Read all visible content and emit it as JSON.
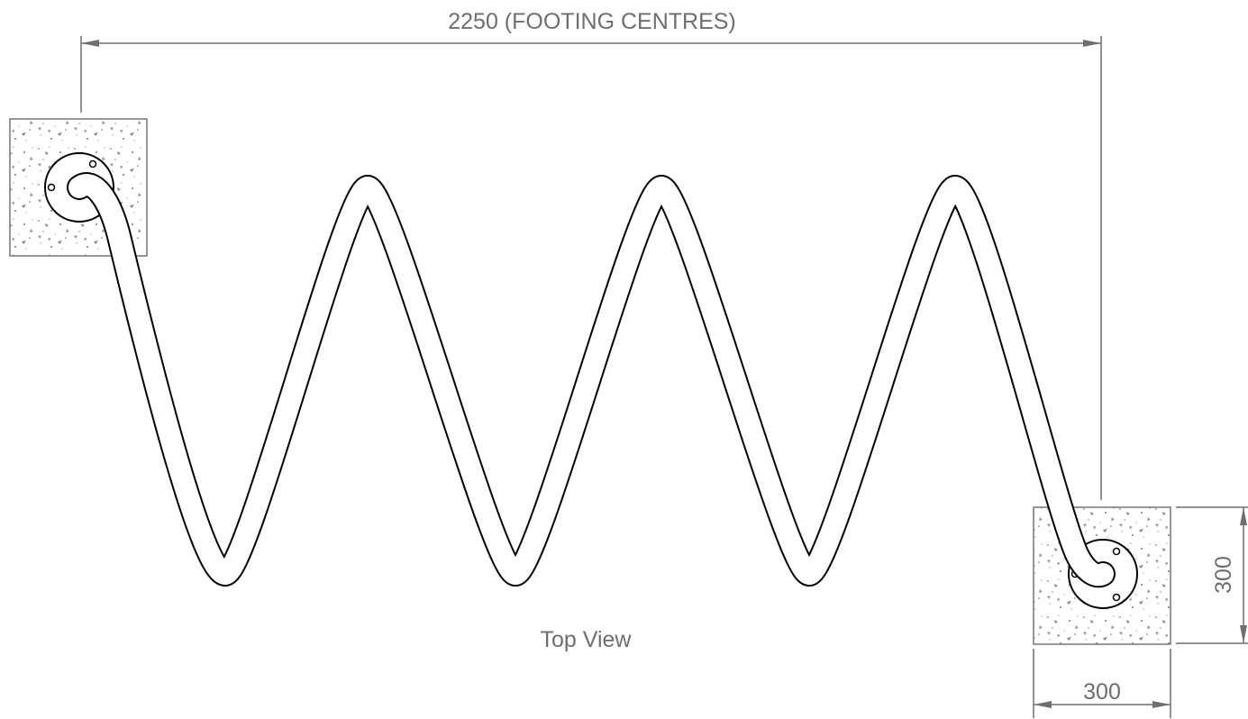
{
  "dimensions": {
    "overall": "2250 (FOOTING CENTRES)",
    "footing_height": "300",
    "footing_width": "300"
  },
  "view_label": "Top View"
}
